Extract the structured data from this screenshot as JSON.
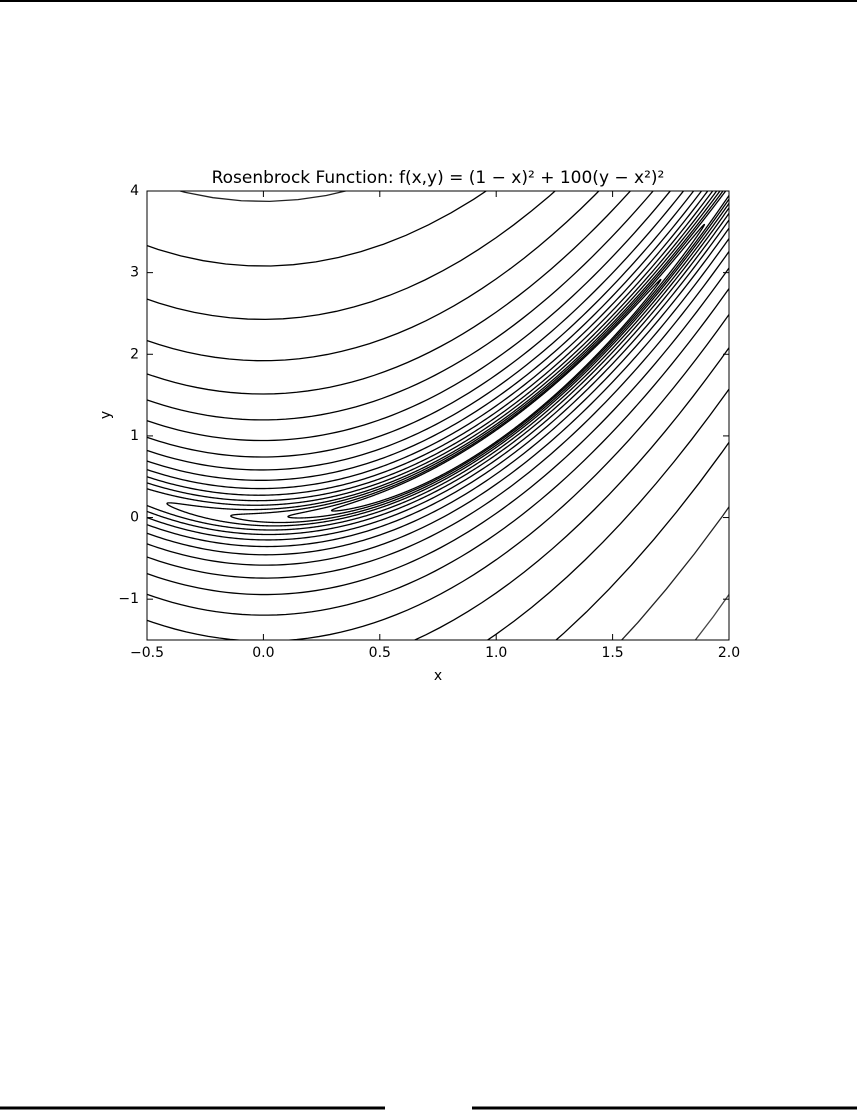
{
  "chart_data": {
    "type": "contour",
    "title": "Rosenbrock Function: f(x,y) = (1 − x)² + 100(y − x²)²",
    "x_label": "x",
    "y_label": "y",
    "a": 1,
    "b": 100,
    "levels": [
      0.5,
      0.8,
      1.3,
      2,
      3.3,
      5.3,
      8.5,
      13.6,
      21.8,
      35,
      56,
      90,
      144,
      230,
      370,
      590,
      950,
      1500,
      2450,
      3900,
      6200
    ],
    "color": "#000000",
    "xlim": [
      -0.5,
      2
    ],
    "ylim": [
      -1.5,
      4
    ],
    "xticks": [
      {
        "value": -0.5,
        "label": "−0.5"
      },
      {
        "value": 0,
        "label": "0.0"
      },
      0.5,
      {
        "value": 1,
        "label": "1.0"
      },
      1.5,
      {
        "value": 2,
        "label": "2.0"
      }
    ],
    "yticks": [
      {
        "value": -1,
        "label": "−1"
      },
      0,
      1,
      2,
      3,
      4
    ]
  }
}
